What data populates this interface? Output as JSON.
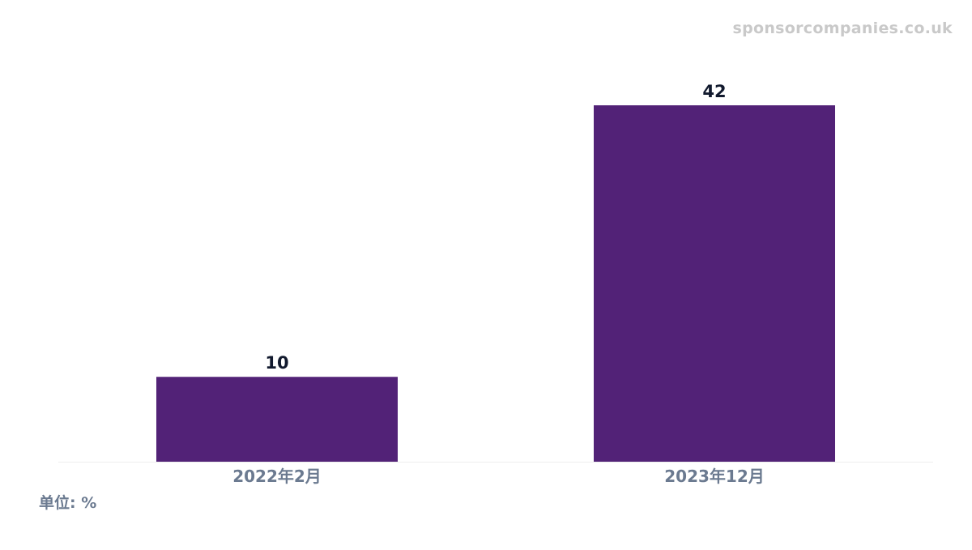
{
  "watermark": "sponsorcompanies.co.uk",
  "unit_label": "单位: %",
  "colors": {
    "bar": "#522277",
    "value_label": "#121a2e",
    "tick_label": "#6b7a90",
    "axis_line": "#eeeeee",
    "watermark": "#c9c9c9"
  },
  "chart_data": {
    "type": "bar",
    "categories": [
      "2022年2月",
      "2023年12月"
    ],
    "values": [
      10,
      42
    ],
    "ylim": [
      0,
      42
    ],
    "grid": false,
    "show_data_labels": true
  }
}
